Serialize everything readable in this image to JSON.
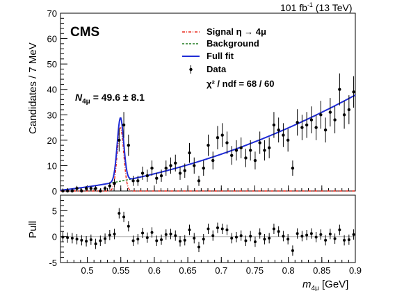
{
  "header": {
    "experiment": "CMS",
    "luminosity": "101 fb",
    "luminosity_exp": "-1",
    "energy": " (13 TeV)"
  },
  "fit_result": {
    "symbol": "N",
    "subscript": "4μ",
    "value": " = 49.6  ± 8.1"
  },
  "legend": {
    "signal": "Signal η → 4μ",
    "background": "Background",
    "fullfit": "Full fit",
    "data": "Data",
    "chi2": "χ² / ndf = 68 / 60"
  },
  "colors": {
    "signal": "#e8281c",
    "background": "#1f7a1f",
    "fullfit": "#1f2bd6",
    "data": "#000000",
    "pull_ref": "#b0b0b0"
  },
  "chart_data": [
    {
      "type": "scatter",
      "name": "main",
      "ylabel": "Candidates / 7 MeV",
      "xlim": [
        0.46,
        0.9
      ],
      "ylim": [
        0,
        70
      ],
      "yticks": [
        0,
        10,
        20,
        30,
        40,
        50,
        60,
        70
      ],
      "x": [
        0.4635,
        0.4705,
        0.4775,
        0.4845,
        0.4915,
        0.4985,
        0.5055,
        0.5125,
        0.5195,
        0.5265,
        0.5335,
        0.5405,
        0.5475,
        0.5545,
        0.5615,
        0.5685,
        0.5755,
        0.5825,
        0.5895,
        0.5965,
        0.6035,
        0.6105,
        0.6175,
        0.6245,
        0.6315,
        0.6385,
        0.6455,
        0.6525,
        0.6595,
        0.6665,
        0.6735,
        0.6805,
        0.6875,
        0.6945,
        0.7015,
        0.7085,
        0.7155,
        0.7225,
        0.7295,
        0.7365,
        0.7435,
        0.7505,
        0.7575,
        0.7645,
        0.7715,
        0.7785,
        0.7855,
        0.7925,
        0.7995,
        0.8065,
        0.8135,
        0.8205,
        0.8275,
        0.8345,
        0.8415,
        0.8485,
        0.8555,
        0.8625,
        0.8695,
        0.8765,
        0.8835,
        0.8905,
        0.8975
      ],
      "y": [
        0,
        0,
        0,
        1,
        0,
        1,
        1,
        1,
        0,
        1,
        2,
        3,
        20,
        26,
        18,
        4,
        4,
        7,
        6,
        9,
        5,
        6,
        9,
        10,
        11,
        7,
        8,
        15,
        10,
        4,
        9,
        18,
        12,
        21,
        22,
        19,
        14,
        16,
        17,
        13,
        16,
        12,
        19,
        16,
        17,
        26,
        24,
        22,
        20,
        9,
        27,
        25,
        26,
        28,
        25,
        30,
        24,
        31,
        28,
        40,
        30,
        32,
        39
      ],
      "yerr": [
        1,
        1,
        1,
        1,
        1,
        1,
        1,
        1,
        1,
        1,
        1.4,
        1.7,
        4.5,
        5.1,
        4.2,
        2,
        2,
        2.6,
        2.4,
        3,
        2.2,
        2.4,
        3,
        3.2,
        3.3,
        2.6,
        2.8,
        3.9,
        3.2,
        2,
        3,
        4.2,
        3.5,
        4.6,
        4.7,
        4.4,
        3.7,
        4,
        4.1,
        3.6,
        4,
        3.5,
        4.4,
        4,
        4.1,
        5.1,
        4.9,
        4.7,
        4.5,
        3,
        5.2,
        5,
        5.1,
        5.3,
        5,
        5.5,
        4.9,
        5.6,
        5.3,
        6.3,
        5.5,
        5.7,
        6.2
      ],
      "xticks": [
        0.5,
        0.55,
        0.6,
        0.65,
        0.7,
        0.75,
        0.8,
        0.85,
        0.9
      ]
    },
    {
      "type": "scatter",
      "name": "pull",
      "ylabel": "Pull",
      "xlabel": "m",
      "xlabel_sub": "4μ",
      "xlabel_unit": " [GeV]",
      "xlim": [
        0.46,
        0.9
      ],
      "ylim": [
        -5,
        8
      ],
      "yticks": [
        -5,
        0,
        5
      ],
      "x": [
        0.4635,
        0.4705,
        0.4775,
        0.4845,
        0.4915,
        0.4985,
        0.5055,
        0.5125,
        0.5195,
        0.5265,
        0.5335,
        0.5405,
        0.5475,
        0.5545,
        0.5615,
        0.5685,
        0.5755,
        0.5825,
        0.5895,
        0.5965,
        0.6035,
        0.6105,
        0.6175,
        0.6245,
        0.6315,
        0.6385,
        0.6455,
        0.6525,
        0.6595,
        0.6665,
        0.6735,
        0.6805,
        0.6875,
        0.6945,
        0.7015,
        0.7085,
        0.7155,
        0.7225,
        0.7295,
        0.7365,
        0.7435,
        0.7505,
        0.7575,
        0.7645,
        0.7715,
        0.7785,
        0.7855,
        0.7925,
        0.7995,
        0.8065,
        0.8135,
        0.8205,
        0.8275,
        0.8345,
        0.8415,
        0.8485,
        0.8555,
        0.8625,
        0.8695,
        0.8765,
        0.8835,
        0.8905,
        0.8975
      ],
      "y": [
        -0.1,
        -0.2,
        -0.3,
        -0.5,
        -0.7,
        -0.9,
        -0.6,
        -1.4,
        -0.8,
        -0.4,
        0.3,
        0.5,
        4.5,
        3.8,
        2,
        -0.8,
        -0.5,
        0.7,
        -0.2,
        0.8,
        -0.8,
        -0.6,
        0.4,
        0.5,
        0.2,
        -0.9,
        -0.7,
        1.3,
        -0.3,
        -2,
        -0.5,
        1.5,
        0.2,
        1.7,
        1.5,
        1.3,
        -0.3,
        -0.1,
        0.2,
        -0.8,
        0.1,
        -1,
        0.6,
        -0.5,
        -0.3,
        1.5,
        1,
        0.1,
        -0.5,
        -2.7,
        0.6,
        0.1,
        0.3,
        0.6,
        -0.1,
        0.4,
        -0.7,
        0.5,
        -0.4,
        1.3,
        -0.7,
        -0.6,
        0.4
      ],
      "yerr": 1,
      "xticks": [
        0.5,
        0.55,
        0.6,
        0.65,
        0.7,
        0.75,
        0.8,
        0.85,
        0.9
      ]
    }
  ]
}
